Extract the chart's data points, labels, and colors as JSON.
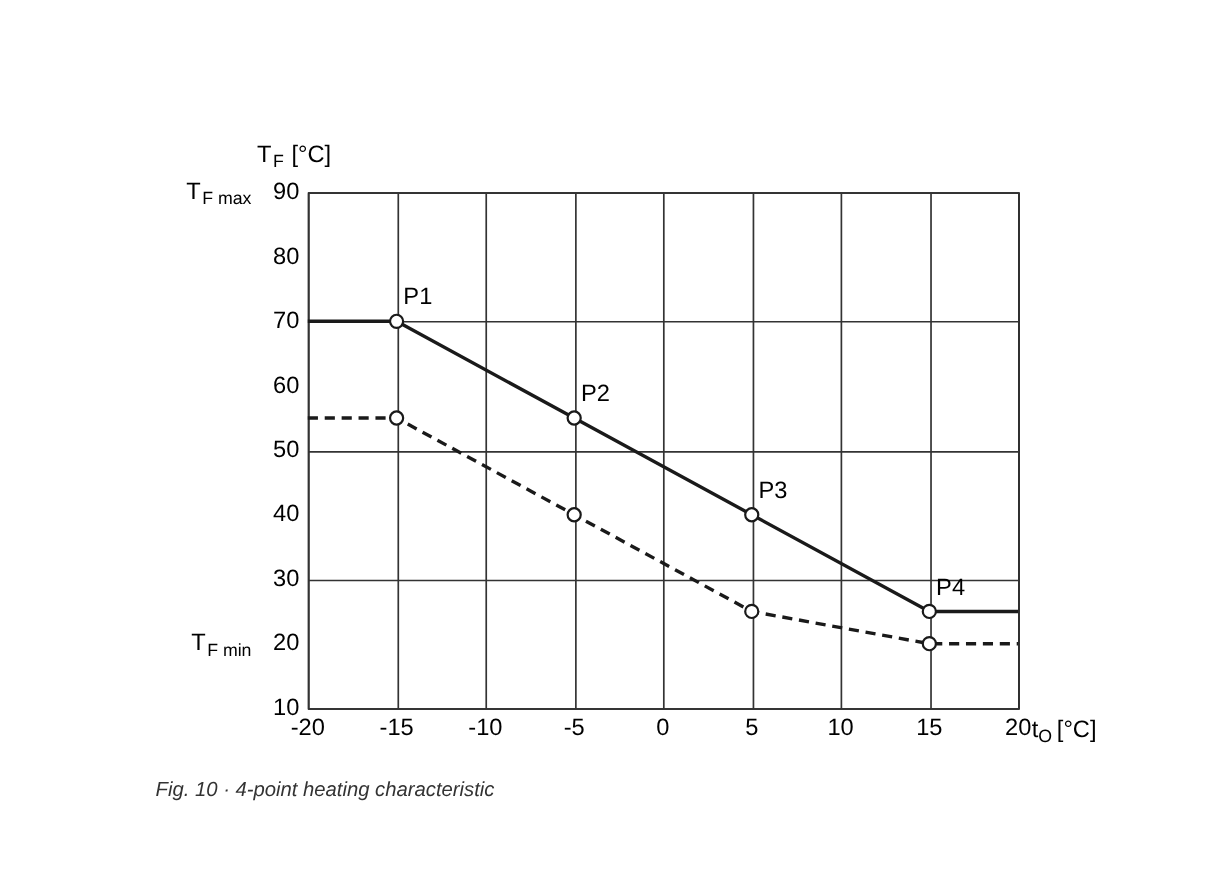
{
  "chart_data": {
    "type": "line",
    "xlabel": "t$_{O}$ [°C]",
    "ylabel": "T$_{F}$ [°C]",
    "xlim": [
      -20,
      20
    ],
    "xticks": [
      -20,
      -15,
      -10,
      -5,
      0,
      5,
      10,
      15,
      20
    ],
    "ylim": [
      10,
      90
    ],
    "yticks": [
      10,
      20,
      30,
      40,
      50,
      60,
      70,
      80,
      90
    ],
    "grid": true,
    "series": [
      {
        "color": "#1a1a1a",
        "line_style": "solid",
        "marker": "none",
        "x": [
          -20,
          -15,
          -5,
          5,
          15,
          20
        ],
        "values": [
          70,
          70,
          55,
          40,
          25,
          25
        ]
      },
      {
        "color": "#1a1a1a",
        "line_style": "dashed",
        "marker": "none",
        "x": [
          -20,
          -15,
          -5,
          5,
          15,
          20
        ],
        "values": [
          55,
          55,
          40,
          25,
          20,
          20
        ]
      },
      {
        "type": "scatter",
        "color": "#1a1a1a",
        "marker": "circle",
        "x": [
          -15,
          -5,
          5,
          15
        ],
        "values": [
          70,
          55,
          40,
          25
        ]
      },
      {
        "type": "scatter",
        "color": "#1a1a1a",
        "marker": "circle",
        "x": [
          -15,
          -5,
          5,
          15
        ],
        "values": [
          55,
          40,
          25,
          20
        ]
      }
    ],
    "annotations": [
      {
        "text": "P1",
        "x": -15,
        "y": 70
      },
      {
        "text": "P2",
        "x": -5,
        "y": 55
      },
      {
        "text": "P3",
        "x": 5,
        "y": 40
      },
      {
        "text": "P4",
        "x": 15,
        "y": 25
      },
      "T$_{F max}$",
      "T$_{F min}$",
      "Fig. 10 · 4-point heating characteristic"
    ]
  }
}
